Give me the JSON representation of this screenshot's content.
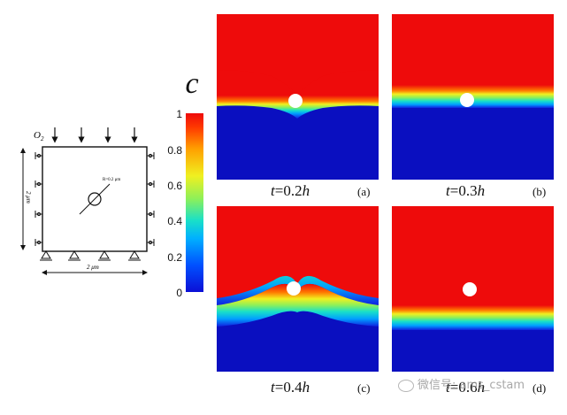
{
  "schematic": {
    "top_label_main": "O",
    "top_label_sub": "2",
    "radius_label": "R=0.2 μm",
    "width_label": "2 μm",
    "height_label": "2 μm"
  },
  "colorbar": {
    "symbol": "c",
    "ticks": [
      "1",
      "0.8",
      "0.6",
      "0.4",
      "0.2",
      "0"
    ],
    "colors": [
      "#0b0fd6",
      "#00b0ff",
      "#8cf05a",
      "#f0f020",
      "#ff3a00",
      "#ee0b0b"
    ]
  },
  "panels": [
    {
      "id": "a",
      "letter": "(a)",
      "time_prefix": "t",
      "time_value": "=0.2",
      "time_unit": "h"
    },
    {
      "id": "b",
      "letter": "(b)",
      "time_prefix": "t",
      "time_value": "=0.3",
      "time_unit": "h"
    },
    {
      "id": "c",
      "letter": "(c)",
      "time_prefix": "t",
      "time_value": "=0.4",
      "time_unit": "h"
    },
    {
      "id": "d",
      "letter": "(d)",
      "time_prefix": "t",
      "time_value": "=0.6",
      "time_unit": "h"
    }
  ],
  "watermark": "微信号: ams_cstam"
}
